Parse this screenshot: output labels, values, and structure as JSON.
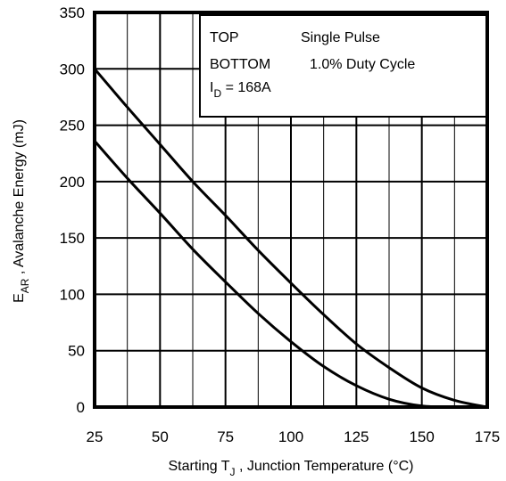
{
  "chart_data": {
    "type": "line",
    "xlabel": {
      "prefix": "Starting T",
      "subscript": "J",
      "suffix": " , Junction Temperature (°C)"
    },
    "ylabel": {
      "prefix": "E",
      "subscript": "AR",
      "suffix": " , Avalanche Energy (mJ)"
    },
    "xlim": [
      25,
      175
    ],
    "ylim": [
      0,
      350
    ],
    "xticks": [
      25,
      50,
      75,
      100,
      125,
      150,
      175
    ],
    "yticks": [
      0,
      50,
      100,
      150,
      200,
      250,
      300,
      350
    ],
    "grid": true,
    "legend": {
      "placement": "top-right",
      "row1_key": "TOP",
      "row1_value": "Single Pulse",
      "row2_key": "BOTTOM",
      "row2_value": "1.0% Duty Cycle",
      "id_prefix": "I",
      "id_subscript": "D",
      "id_suffix": " = 168A"
    },
    "series": [
      {
        "x": [
          25,
          37.5,
          50,
          62.5,
          75,
          87.5,
          100,
          112.5,
          125,
          137.5,
          150,
          162.5,
          175
        ],
        "y": [
          300,
          266,
          233,
          200,
          170,
          139,
          110,
          82,
          56,
          35,
          17,
          6,
          0
        ]
      },
      {
        "x": [
          25,
          37.5,
          50,
          62.5,
          75,
          87.5,
          100,
          112.5,
          125,
          137.5,
          150,
          162.5,
          175
        ],
        "y": [
          236,
          203,
          172,
          140,
          111,
          83,
          58,
          36,
          19,
          7,
          1,
          0,
          0
        ]
      }
    ]
  }
}
